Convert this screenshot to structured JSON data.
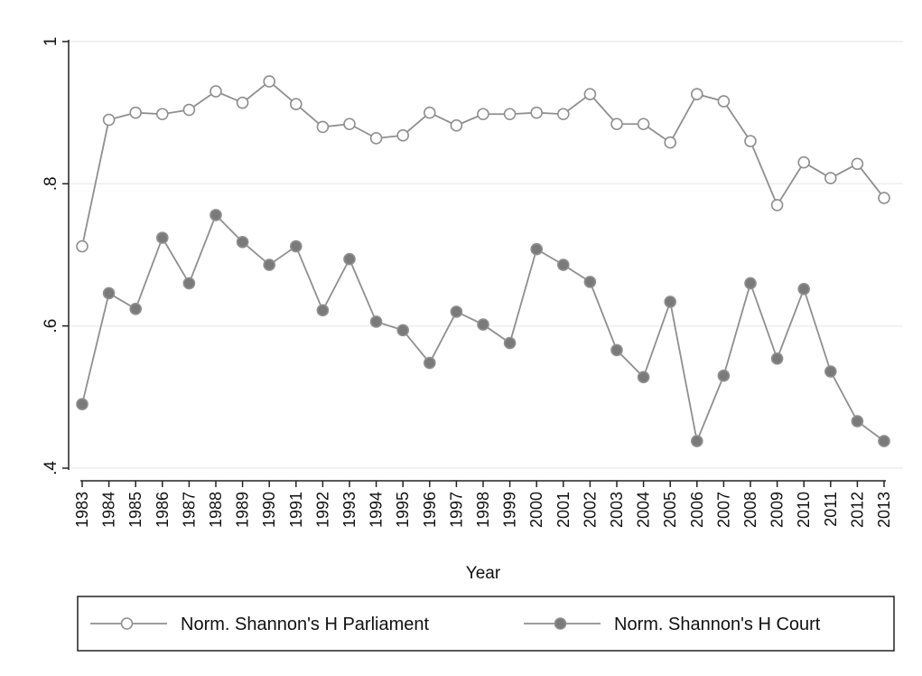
{
  "chart_data": {
    "type": "line",
    "title": "",
    "xlabel": "Year",
    "ylabel": "",
    "x": [
      "1983",
      "1984",
      "1985",
      "1986",
      "1987",
      "1988",
      "1989",
      "1990",
      "1991",
      "1992",
      "1993",
      "1994",
      "1995",
      "1996",
      "1997",
      "1998",
      "1999",
      "2000",
      "2001",
      "2002",
      "2003",
      "2004",
      "2005",
      "2006",
      "2007",
      "2008",
      "2009",
      "2010",
      "2011",
      "2012",
      "2013"
    ],
    "ylim": [
      0.4,
      1.0
    ],
    "yticks": [
      {
        "value": 0.4,
        "label": ".4"
      },
      {
        "value": 0.6,
        "label": ".6"
      },
      {
        "value": 0.8,
        "label": ".8"
      },
      {
        "value": 1.0,
        "label": "1"
      }
    ],
    "grid": true,
    "legend_position": "bottom",
    "series": [
      {
        "name": "Norm. Shannon's H Parliament",
        "marker": "hollow-circle",
        "values": [
          0.712,
          0.89,
          0.9,
          0.898,
          0.904,
          0.93,
          0.914,
          0.944,
          0.912,
          0.88,
          0.884,
          0.864,
          0.868,
          0.9,
          0.882,
          0.898,
          0.898,
          0.9,
          0.898,
          0.926,
          0.884,
          0.884,
          0.858,
          0.926,
          0.916,
          0.86,
          0.77,
          0.83,
          0.808,
          0.828,
          0.78
        ]
      },
      {
        "name": "Norm. Shannon's H Court",
        "marker": "filled-circle",
        "values": [
          0.49,
          0.646,
          0.624,
          0.724,
          0.66,
          0.756,
          0.718,
          0.686,
          0.712,
          0.622,
          0.694,
          0.606,
          0.594,
          0.548,
          0.62,
          0.602,
          0.576,
          0.708,
          0.686,
          0.662,
          0.566,
          0.528,
          0.634,
          0.438,
          0.53,
          0.66,
          0.554,
          0.652,
          0.536,
          0.466,
          0.438
        ]
      }
    ]
  },
  "colors": {
    "line": "#8f8f8f",
    "marker_fill_filled": "#7a7a7a",
    "marker_fill_hollow": "#ffffff",
    "grid": "#eeeeee",
    "axis": "#222222"
  }
}
